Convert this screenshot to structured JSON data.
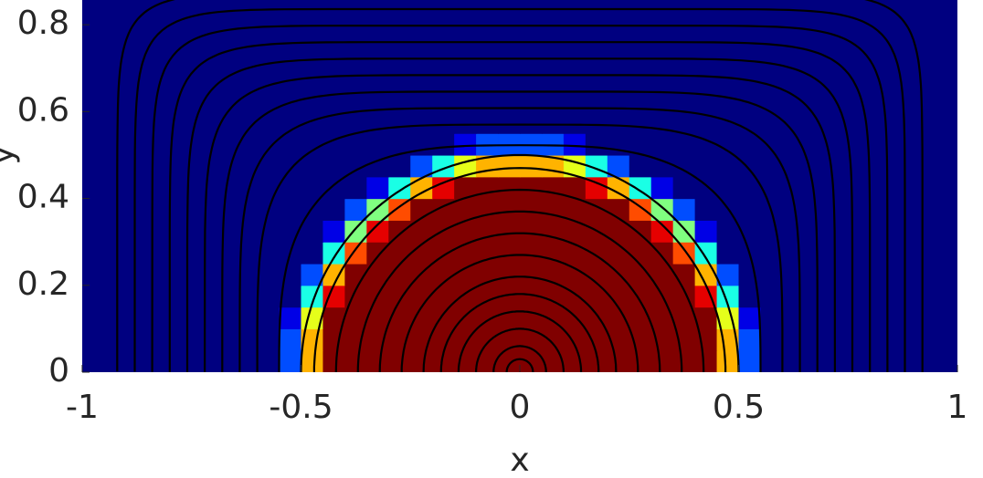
{
  "chart_data": {
    "type": "heatmap",
    "colormap": "jet",
    "xlabel": "x",
    "ylabel": "y",
    "xlim": [
      -1,
      1
    ],
    "ylim": [
      0,
      0.857
    ],
    "xticks": [
      -1,
      -0.5,
      0,
      0.5,
      1
    ],
    "yticks": [
      0,
      0.2,
      0.4,
      0.6,
      0.8
    ],
    "x": [
      -0.975,
      -0.925,
      -0.875,
      -0.825,
      -0.775,
      -0.725,
      -0.675,
      -0.625,
      -0.575,
      -0.525,
      -0.475,
      -0.425,
      -0.375,
      -0.325,
      -0.275,
      -0.225,
      -0.175,
      -0.125,
      -0.075,
      -0.025,
      0.025,
      0.075,
      0.125,
      0.175,
      0.225,
      0.275,
      0.325,
      0.375,
      0.425,
      0.475,
      0.525,
      0.575,
      0.625,
      0.675,
      0.725,
      0.775,
      0.825,
      0.875,
      0.925,
      0.975
    ],
    "y": [
      0.025,
      0.075,
      0.125,
      0.175,
      0.225,
      0.275,
      0.325,
      0.375,
      0.425,
      0.475,
      0.525,
      0.575,
      0.625,
      0.675,
      0.725,
      0.775,
      0.825,
      0.875
    ],
    "z": [
      [
        0,
        0,
        0,
        0,
        0,
        0,
        0,
        0,
        0,
        0.2,
        0.7,
        1,
        1,
        1,
        1,
        1,
        1,
        1,
        1,
        1,
        1,
        1,
        1,
        1,
        1,
        1,
        1,
        1,
        1,
        0.7,
        0.2,
        0,
        0,
        0,
        0,
        0,
        0,
        0,
        0,
        0
      ],
      [
        0,
        0,
        0,
        0,
        0,
        0,
        0,
        0,
        0,
        0.2,
        0.7,
        1,
        1,
        1,
        1,
        1,
        1,
        1,
        1,
        1,
        1,
        1,
        1,
        1,
        1,
        1,
        1,
        1,
        1,
        0.7,
        0.2,
        0,
        0,
        0,
        0,
        0,
        0,
        0,
        0,
        0
      ],
      [
        0,
        0,
        0,
        0,
        0,
        0,
        0,
        0,
        0,
        0.1,
        0.6,
        1,
        1,
        1,
        1,
        1,
        1,
        1,
        1,
        1,
        1,
        1,
        1,
        1,
        1,
        1,
        1,
        1,
        1,
        0.6,
        0.1,
        0,
        0,
        0,
        0,
        0,
        0,
        0,
        0,
        0
      ],
      [
        0,
        0,
        0,
        0,
        0,
        0,
        0,
        0,
        0,
        0,
        0.4,
        0.9,
        1,
        1,
        1,
        1,
        1,
        1,
        1,
        1,
        1,
        1,
        1,
        1,
        1,
        1,
        1,
        1,
        0.9,
        0.4,
        0,
        0,
        0,
        0,
        0,
        0,
        0,
        0,
        0,
        0
      ],
      [
        0,
        0,
        0,
        0,
        0,
        0,
        0,
        0,
        0,
        0,
        0.2,
        0.7,
        1,
        1,
        1,
        1,
        1,
        1,
        1,
        1,
        1,
        1,
        1,
        1,
        1,
        1,
        1,
        1,
        0.7,
        0.2,
        0,
        0,
        0,
        0,
        0,
        0,
        0,
        0,
        0,
        0
      ],
      [
        0,
        0,
        0,
        0,
        0,
        0,
        0,
        0,
        0,
        0,
        0,
        0.4,
        0.8,
        1,
        1,
        1,
        1,
        1,
        1,
        1,
        1,
        1,
        1,
        1,
        1,
        1,
        1,
        0.8,
        0.4,
        0,
        0,
        0,
        0,
        0,
        0,
        0,
        0,
        0,
        0,
        0
      ],
      [
        0,
        0,
        0,
        0,
        0,
        0,
        0,
        0,
        0,
        0,
        0,
        0.1,
        0.5,
        0.9,
        1,
        1,
        1,
        1,
        1,
        1,
        1,
        1,
        1,
        1,
        1,
        1,
        0.9,
        0.5,
        0.1,
        0,
        0,
        0,
        0,
        0,
        0,
        0,
        0,
        0,
        0,
        0
      ],
      [
        0,
        0,
        0,
        0,
        0,
        0,
        0,
        0,
        0,
        0,
        0,
        0,
        0.2,
        0.5,
        0.8,
        1,
        1,
        1,
        1,
        1,
        1,
        1,
        1,
        1,
        1,
        0.8,
        0.5,
        0.2,
        0,
        0,
        0,
        0,
        0,
        0,
        0,
        0,
        0,
        0,
        0,
        0
      ],
      [
        0,
        0,
        0,
        0,
        0,
        0,
        0,
        0,
        0,
        0,
        0,
        0,
        0,
        0.1,
        0.4,
        0.7,
        0.9,
        1,
        1,
        1,
        1,
        1,
        1,
        0.9,
        0.7,
        0.4,
        0.1,
        0,
        0,
        0,
        0,
        0,
        0,
        0,
        0,
        0,
        0,
        0,
        0,
        0
      ],
      [
        0,
        0,
        0,
        0,
        0,
        0,
        0,
        0,
        0,
        0,
        0,
        0,
        0,
        0,
        0,
        0.2,
        0.4,
        0.6,
        0.7,
        0.7,
        0.7,
        0.7,
        0.6,
        0.4,
        0.2,
        0,
        0,
        0,
        0,
        0,
        0,
        0,
        0,
        0,
        0,
        0,
        0,
        0,
        0,
        0
      ],
      [
        0,
        0,
        0,
        0,
        0,
        0,
        0,
        0,
        0,
        0,
        0,
        0,
        0,
        0,
        0,
        0,
        0,
        0.1,
        0.2,
        0.2,
        0.2,
        0.2,
        0.1,
        0,
        0,
        0,
        0,
        0,
        0,
        0,
        0,
        0,
        0,
        0,
        0,
        0,
        0,
        0,
        0,
        0
      ],
      [
        0,
        0,
        0,
        0,
        0,
        0,
        0,
        0,
        0,
        0,
        0,
        0,
        0,
        0,
        0,
        0,
        0,
        0,
        0,
        0,
        0,
        0,
        0,
        0,
        0,
        0,
        0,
        0,
        0,
        0,
        0,
        0,
        0,
        0,
        0,
        0,
        0,
        0,
        0,
        0
      ],
      [
        0,
        0,
        0,
        0,
        0,
        0,
        0,
        0,
        0,
        0,
        0,
        0,
        0,
        0,
        0,
        0,
        0,
        0,
        0,
        0,
        0,
        0,
        0,
        0,
        0,
        0,
        0,
        0,
        0,
        0,
        0,
        0,
        0,
        0,
        0,
        0,
        0,
        0,
        0,
        0
      ],
      [
        0,
        0,
        0,
        0,
        0,
        0,
        0,
        0,
        0,
        0,
        0,
        0,
        0,
        0,
        0,
        0,
        0,
        0,
        0,
        0,
        0,
        0,
        0,
        0,
        0,
        0,
        0,
        0,
        0,
        0,
        0,
        0,
        0,
        0,
        0,
        0,
        0,
        0,
        0,
        0
      ],
      [
        0,
        0,
        0,
        0,
        0,
        0,
        0,
        0,
        0,
        0,
        0,
        0,
        0,
        0,
        0,
        0,
        0,
        0,
        0,
        0,
        0,
        0,
        0,
        0,
        0,
        0,
        0,
        0,
        0,
        0,
        0,
        0,
        0,
        0,
        0,
        0,
        0,
        0,
        0,
        0
      ],
      [
        0,
        0,
        0,
        0,
        0,
        0,
        0,
        0,
        0,
        0,
        0,
        0,
        0,
        0,
        0,
        0,
        0,
        0,
        0,
        0,
        0,
        0,
        0,
        0,
        0,
        0,
        0,
        0,
        0,
        0,
        0,
        0,
        0,
        0,
        0,
        0,
        0,
        0,
        0,
        0
      ],
      [
        0,
        0,
        0,
        0,
        0,
        0,
        0,
        0,
        0,
        0,
        0,
        0,
        0,
        0,
        0,
        0,
        0,
        0,
        0,
        0,
        0,
        0,
        0,
        0,
        0,
        0,
        0,
        0,
        0,
        0,
        0,
        0,
        0,
        0,
        0,
        0,
        0,
        0,
        0,
        0
      ],
      [
        0,
        0,
        0,
        0,
        0,
        0,
        0,
        0,
        0,
        0,
        0,
        0,
        0,
        0,
        0,
        0,
        0,
        0,
        0,
        0,
        0,
        0,
        0,
        0,
        0,
        0,
        0,
        0,
        0,
        0,
        0,
        0,
        0,
        0,
        0,
        0,
        0,
        0,
        0,
        0
      ]
    ],
    "streamlines": [
      0.03,
      0.06,
      0.1,
      0.14,
      0.18,
      0.22,
      0.27,
      0.32,
      0.37,
      0.42,
      0.47,
      0.5,
      0.55,
      0.6,
      0.64,
      0.68,
      0.72,
      0.76,
      0.8,
      0.84,
      0.88,
      0.92
    ],
    "streamline_color": "#000000"
  }
}
